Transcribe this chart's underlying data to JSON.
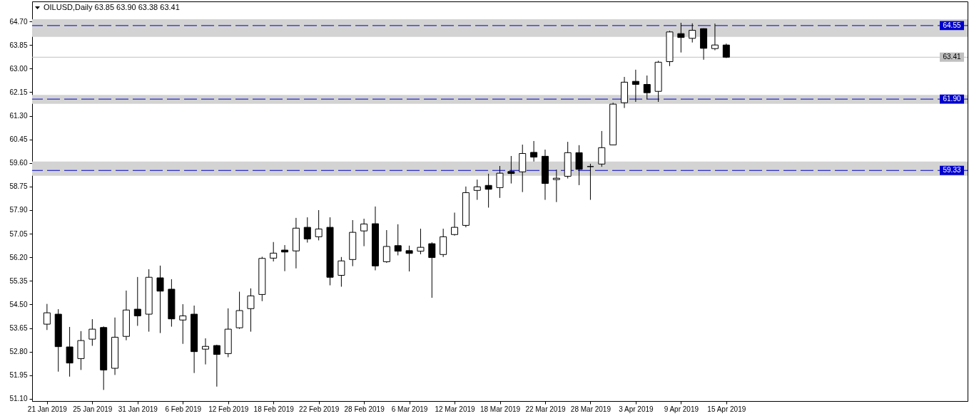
{
  "chart_data": {
    "type": "candlestick",
    "title": "OILUSD,Daily 63.85 63.90 63.38 63.41",
    "categories": [
      "21 Jan 2019",
      null,
      null,
      null,
      "25 Jan 2019",
      null,
      null,
      null,
      "31 Jan 2019",
      null,
      null,
      null,
      "6 Feb 2019",
      null,
      null,
      null,
      "12 Feb 2019",
      null,
      null,
      null,
      "18 Feb 2019",
      null,
      null,
      null,
      "22 Feb 2019",
      null,
      null,
      null,
      "28 Feb 2019",
      null,
      null,
      null,
      "6 Mar 2019",
      null,
      null,
      null,
      "12 Mar 2019",
      null,
      null,
      null,
      "18 Mar 2019",
      null,
      null,
      null,
      "22 Mar 2019",
      null,
      null,
      null,
      "28 Mar 2019",
      null,
      null,
      null,
      "3 Apr 2019",
      null,
      null,
      null,
      "9 Apr 2019",
      null,
      null,
      null,
      "15 Apr 2019"
    ],
    "ohlc": [
      [
        53.79,
        54.52,
        53.58,
        54.2
      ],
      [
        54.15,
        54.33,
        52.08,
        52.98
      ],
      [
        52.97,
        53.69,
        51.9,
        52.39
      ],
      [
        52.55,
        53.54,
        52.14,
        53.2
      ],
      [
        53.25,
        53.97,
        53.01,
        53.61
      ],
      [
        53.67,
        53.71,
        51.42,
        52.14
      ],
      [
        52.2,
        54.03,
        51.96,
        53.32
      ],
      [
        53.35,
        55.0,
        53.21,
        54.3
      ],
      [
        54.33,
        55.49,
        53.73,
        54.09
      ],
      [
        54.15,
        55.77,
        53.52,
        55.48
      ],
      [
        55.46,
        55.9,
        53.47,
        54.98
      ],
      [
        55.05,
        55.41,
        53.7,
        53.98
      ],
      [
        53.94,
        54.51,
        53.08,
        54.09
      ],
      [
        54.15,
        54.46,
        52.03,
        52.8
      ],
      [
        52.89,
        53.28,
        52.34,
        52.99
      ],
      [
        53.02,
        53.05,
        51.54,
        52.7
      ],
      [
        52.73,
        54.36,
        52.6,
        53.61
      ],
      [
        53.66,
        54.96,
        53.62,
        54.28
      ],
      [
        54.35,
        55.08,
        53.52,
        54.81
      ],
      [
        54.86,
        56.22,
        54.62,
        56.16
      ],
      [
        56.17,
        56.75,
        56.05,
        56.35
      ],
      [
        56.46,
        56.64,
        55.7,
        56.39
      ],
      [
        56.43,
        57.62,
        55.8,
        57.25
      ],
      [
        57.28,
        57.64,
        56.73,
        56.86
      ],
      [
        56.94,
        57.9,
        56.81,
        57.22
      ],
      [
        57.28,
        57.64,
        55.19,
        55.48
      ],
      [
        55.55,
        56.21,
        55.14,
        56.07
      ],
      [
        56.12,
        57.54,
        55.88,
        57.1
      ],
      [
        57.15,
        57.59,
        56.6,
        57.4
      ],
      [
        57.41,
        58.03,
        55.73,
        55.89
      ],
      [
        56.04,
        57.18,
        56.0,
        56.59
      ],
      [
        56.62,
        57.39,
        56.27,
        56.42
      ],
      [
        56.44,
        56.62,
        55.69,
        56.34
      ],
      [
        56.42,
        57.23,
        56.31,
        56.56
      ],
      [
        56.69,
        56.74,
        54.74,
        56.19
      ],
      [
        56.3,
        57.23,
        56.21,
        56.94
      ],
      [
        57.02,
        57.81,
        56.98,
        57.28
      ],
      [
        57.35,
        58.75,
        57.28,
        58.53
      ],
      [
        58.61,
        59.0,
        58.27,
        58.74
      ],
      [
        58.79,
        59.21,
        57.99,
        58.65
      ],
      [
        58.71,
        59.49,
        58.34,
        59.23
      ],
      [
        59.29,
        59.85,
        58.86,
        59.22
      ],
      [
        59.28,
        60.26,
        58.55,
        59.94
      ],
      [
        59.98,
        60.39,
        59.65,
        59.81
      ],
      [
        59.84,
        60.08,
        58.27,
        58.86
      ],
      [
        59.0,
        59.36,
        58.19,
        59.05
      ],
      [
        59.12,
        60.36,
        59.04,
        59.97
      ],
      [
        59.97,
        60.24,
        58.8,
        59.37
      ],
      [
        59.47,
        59.57,
        58.27,
        59.47
      ],
      [
        59.56,
        60.75,
        59.46,
        60.15
      ],
      [
        60.25,
        61.77,
        60.24,
        61.72
      ],
      [
        61.77,
        62.7,
        61.58,
        62.51
      ],
      [
        62.54,
        62.96,
        61.8,
        62.43
      ],
      [
        62.43,
        62.75,
        61.9,
        62.13
      ],
      [
        62.18,
        63.28,
        61.8,
        63.23
      ],
      [
        63.25,
        64.36,
        63.09,
        64.32
      ],
      [
        64.26,
        64.65,
        63.58,
        64.12
      ],
      [
        64.09,
        64.63,
        63.94,
        64.38
      ],
      [
        64.44,
        64.45,
        63.32,
        63.73
      ],
      [
        63.72,
        64.62,
        63.66,
        63.85
      ],
      [
        63.85,
        63.9,
        63.38,
        63.41
      ]
    ],
    "color": "#000000",
    "colors": [
      "#ffffff",
      "#000000",
      "#000000",
      "#ffffff",
      "#ffffff",
      "#000000",
      "#ffffff",
      "#ffffff",
      "#000000",
      "#ffffff",
      "#000000",
      "#000000",
      "#ffffff",
      "#000000",
      "#ffffff",
      "#000000",
      "#ffffff",
      "#ffffff",
      "#ffffff",
      "#ffffff",
      "#ffffff",
      "#000000",
      "#ffffff",
      "#000000",
      "#ffffff",
      "#000000",
      "#ffffff",
      "#ffffff",
      "#ffffff",
      "#000000",
      "#ffffff",
      "#000000",
      "#000000",
      "#ffffff",
      "#000000",
      "#ffffff",
      "#ffffff",
      "#ffffff",
      "#ffffff",
      "#000000",
      "#ffffff",
      "#000000",
      "#ffffff",
      "#000000",
      "#000000",
      "#ffffff",
      "#ffffff",
      "#000000",
      "#000000",
      "#ffffff",
      "#ffffff",
      "#ffffff",
      "#000000",
      "#000000",
      "#ffffff",
      "#ffffff",
      "#000000",
      "#ffffff",
      "#000000",
      "#ffffff",
      "#000000"
    ],
    "ylim": [
      51.02,
      65.42
    ],
    "yticks": [
      {
        "value": 51.1,
        "label": "51.10"
      },
      {
        "value": 51.95,
        "label": "51.95"
      },
      {
        "value": 52.8,
        "label": "52.80"
      },
      {
        "value": 53.65,
        "label": "53.65"
      },
      {
        "value": 54.5,
        "label": "54.50"
      },
      {
        "value": 55.35,
        "label": "55.35"
      },
      {
        "value": 56.2,
        "label": "56.20"
      },
      {
        "value": 57.05,
        "label": "57.05"
      },
      {
        "value": 57.9,
        "label": "57.90"
      },
      {
        "value": 58.75,
        "label": "58.75"
      },
      {
        "value": 59.6,
        "label": "59.60"
      },
      {
        "value": 60.45,
        "label": "60.45"
      },
      {
        "value": 61.3,
        "label": "61.30"
      },
      {
        "value": 62.15,
        "label": "62.15"
      },
      {
        "value": 63,
        "label": "63.00"
      },
      {
        "value": 63.85,
        "label": "63.85"
      },
      {
        "value": 64.7,
        "label": "64.70"
      }
    ],
    "ref_lines": [
      {
        "axis": "y",
        "value": 64.55,
        "label": "64.55",
        "color": "#0000cd",
        "line_style": "dashed"
      },
      {
        "axis": "y",
        "value": 61.9,
        "label": "61.90",
        "color": "#0000cd",
        "line_style": "dashed"
      },
      {
        "axis": "y",
        "value": 59.33,
        "label": "59.33",
        "color": "#0000cd",
        "line_style": "dashed"
      },
      {
        "axis": "y",
        "value": 63.41,
        "label": "63.41",
        "color": "#c0c0c0",
        "line_style": "solid"
      }
    ],
    "bands": [
      {
        "axis": "y",
        "from": 64.14,
        "to": 64.78,
        "color": "#d3d3d3"
      },
      {
        "axis": "y",
        "from": 61.73,
        "to": 62.05,
        "color": "#d3d3d3"
      },
      {
        "axis": "y",
        "from": 59.14,
        "to": 59.65,
        "color": "#d3d3d3"
      }
    ],
    "grid": false
  }
}
